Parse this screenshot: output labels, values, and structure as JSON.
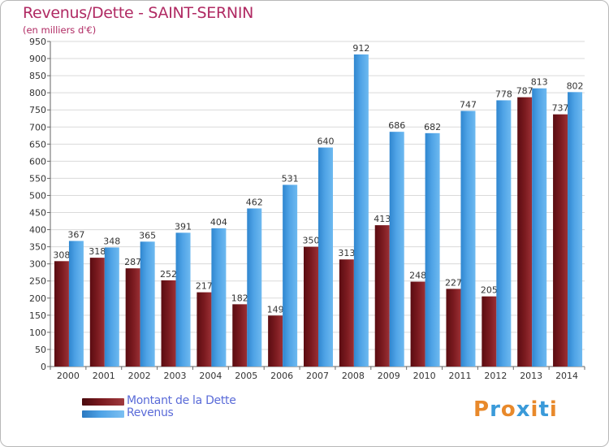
{
  "header": {
    "title": "Revenus/Dette - SAINT-SERNIN",
    "subtitle": "(en milliers d'€)"
  },
  "colors": {
    "dette": "#7a1a1f",
    "revenus": "#4fa3e6",
    "title": "#b02a63",
    "legend_text": "#5a6bd8"
  },
  "chart_data": {
    "type": "bar",
    "title": "Revenus/Dette - SAINT-SERNIN",
    "ylabel": "(en milliers d'€)",
    "xlabel": "",
    "categories": [
      "2000",
      "2001",
      "2002",
      "2003",
      "2004",
      "2005",
      "2006",
      "2007",
      "2008",
      "2009",
      "2010",
      "2011",
      "2012",
      "2013",
      "2014"
    ],
    "series": [
      {
        "name": "Montant de la Dette",
        "values": [
          308,
          318,
          287,
          252,
          217,
          182,
          149,
          350,
          313,
          413,
          248,
          227,
          205,
          787,
          737
        ]
      },
      {
        "name": "Revenus",
        "values": [
          367,
          348,
          365,
          391,
          404,
          462,
          531,
          640,
          912,
          686,
          682,
          747,
          778,
          813,
          802
        ]
      }
    ],
    "ylim": [
      0,
      950
    ],
    "yticks": [
      0,
      50,
      100,
      150,
      200,
      250,
      300,
      350,
      400,
      450,
      500,
      550,
      600,
      650,
      700,
      750,
      800,
      850,
      900,
      950
    ],
    "grid": true,
    "legend_position": "bottom-left"
  },
  "legend": {
    "items": [
      {
        "label": "Montant de la Dette"
      },
      {
        "label": "Revenus"
      }
    ]
  },
  "logo": {
    "letters": [
      "P",
      "r",
      "o",
      "x",
      "i",
      "t",
      "i"
    ],
    "colors": [
      "#e8892b",
      "#3a9ad9",
      "#e8892b",
      "#3a9ad9",
      "#e8892b",
      "#3a9ad9",
      "#e8892b"
    ]
  }
}
